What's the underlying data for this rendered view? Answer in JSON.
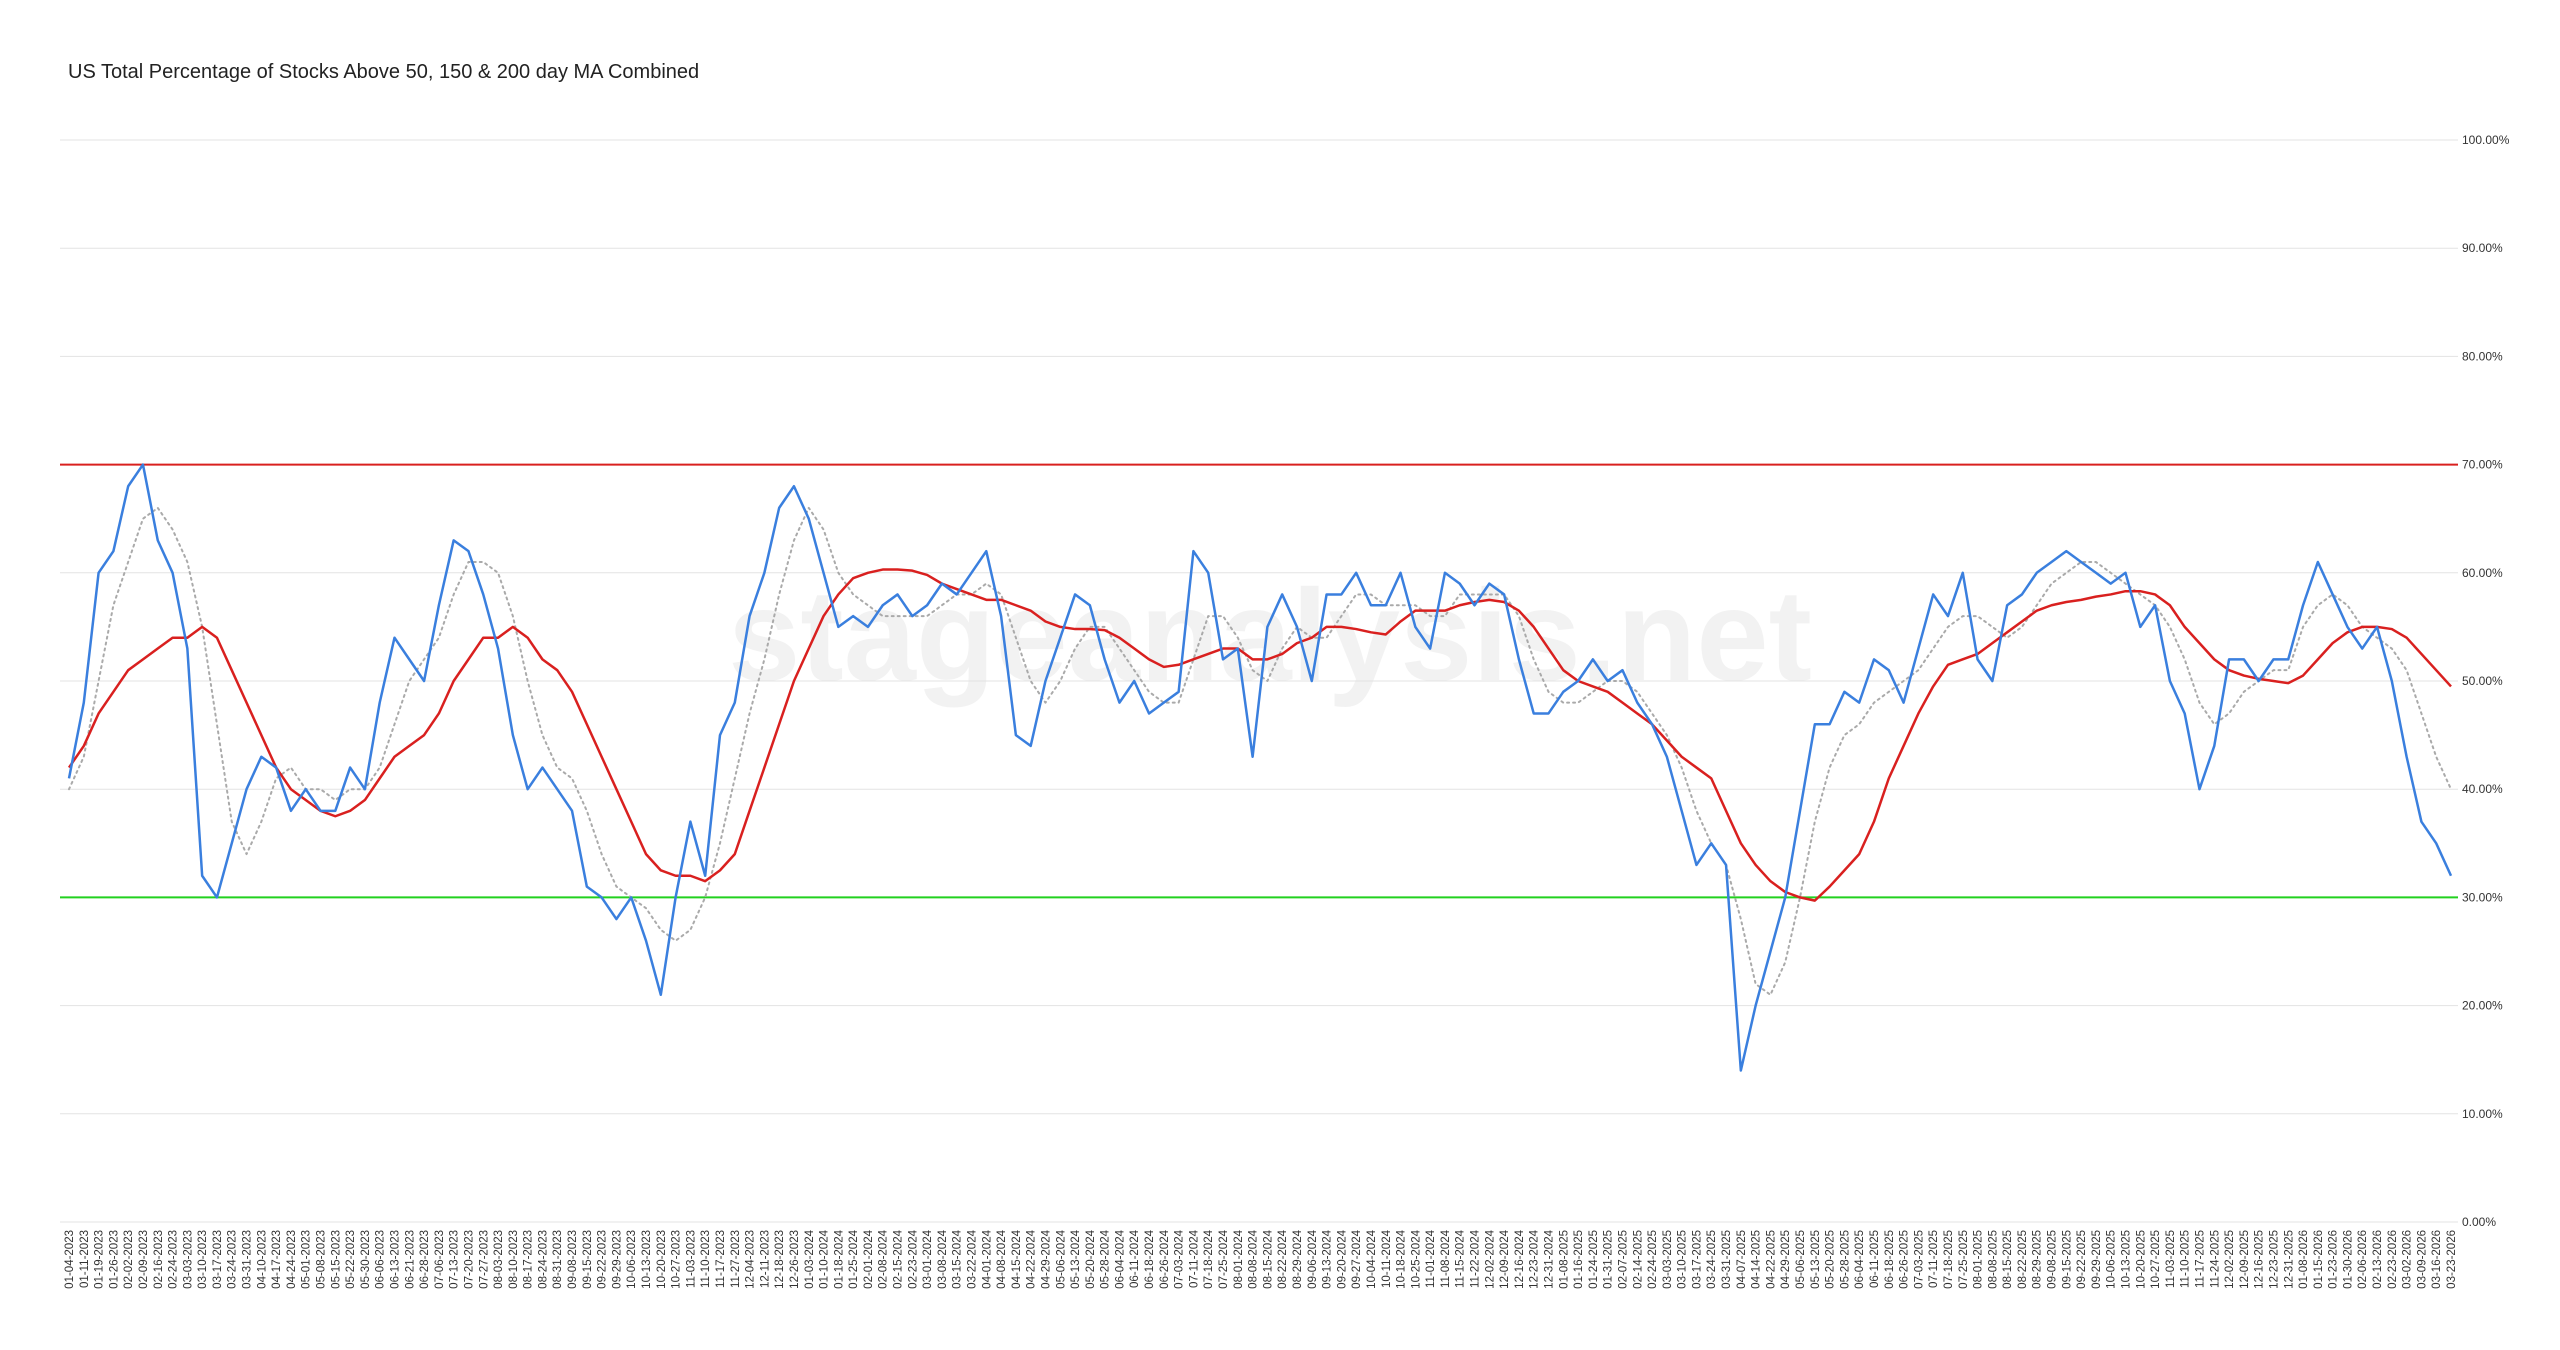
{
  "chart_data": {
    "type": "line",
    "title": "US Total Percentage of Stocks Above 50, 150 & 200 day MA Combined",
    "watermark": "stageanalysis.net",
    "ylim": [
      0,
      100
    ],
    "yticks": [
      {
        "value": 0,
        "label": "0.00%"
      },
      {
        "value": 10,
        "label": "10.00%"
      },
      {
        "value": 20,
        "label": "20.00%"
      },
      {
        "value": 30,
        "label": "30.00%"
      },
      {
        "value": 40,
        "label": "40.00%"
      },
      {
        "value": 50,
        "label": "50.00%"
      },
      {
        "value": 60,
        "label": "60.00%"
      },
      {
        "value": 70,
        "label": "70.00%"
      },
      {
        "value": 80,
        "label": "80.00%"
      },
      {
        "value": 90,
        "label": "90.00%"
      },
      {
        "value": 100,
        "label": "100.00%"
      }
    ],
    "grid": true,
    "reference_lines": [
      {
        "value": 70,
        "color": "#d9201f"
      },
      {
        "value": 30,
        "color": "#22d11f"
      }
    ],
    "categories": [
      "01-04-2023",
      "01-11-2023",
      "01-19-2023",
      "01-26-2023",
      "02-02-2023",
      "02-09-2023",
      "02-16-2023",
      "02-24-2023",
      "03-03-2023",
      "03-10-2023",
      "03-17-2023",
      "03-24-2023",
      "03-31-2023",
      "04-10-2023",
      "04-17-2023",
      "04-24-2023",
      "05-01-2023",
      "05-08-2023",
      "05-15-2023",
      "05-22-2023",
      "05-30-2023",
      "06-06-2023",
      "06-13-2023",
      "06-21-2023",
      "06-28-2023",
      "07-06-2023",
      "07-13-2023",
      "07-20-2023",
      "07-27-2023",
      "08-03-2023",
      "08-10-2023",
      "08-17-2023",
      "08-24-2023",
      "08-31-2023",
      "09-08-2023",
      "09-15-2023",
      "09-22-2023",
      "09-29-2023",
      "10-06-2023",
      "10-13-2023",
      "10-20-2023",
      "10-27-2023",
      "11-03-2023",
      "11-10-2023",
      "11-17-2023",
      "11-27-2023",
      "12-04-2023",
      "12-11-2023",
      "12-18-2023",
      "12-26-2023",
      "01-03-2024",
      "01-10-2024",
      "01-18-2024",
      "01-25-2024",
      "02-01-2024",
      "02-08-2024",
      "02-15-2024",
      "02-23-2024",
      "03-01-2024",
      "03-08-2024",
      "03-15-2024",
      "03-22-2024",
      "04-01-2024",
      "04-08-2024",
      "04-15-2024",
      "04-22-2024",
      "04-29-2024",
      "05-06-2024",
      "05-13-2024",
      "05-20-2024",
      "05-28-2024",
      "06-04-2024",
      "06-11-2024",
      "06-18-2024",
      "06-26-2024",
      "07-03-2024",
      "07-11-2024",
      "07-18-2024",
      "07-25-2024",
      "08-01-2024",
      "08-08-2024",
      "08-15-2024",
      "08-22-2024",
      "08-29-2024",
      "09-06-2024",
      "09-13-2024",
      "09-20-2024",
      "09-27-2024",
      "10-04-2024",
      "10-11-2024",
      "10-18-2024",
      "10-25-2024",
      "11-01-2024",
      "11-08-2024",
      "11-15-2024",
      "11-22-2024",
      "12-02-2024",
      "12-09-2024",
      "12-16-2024",
      "12-23-2024",
      "12-31-2024",
      "01-08-2025",
      "01-16-2025",
      "01-24-2025",
      "01-31-2025",
      "02-07-2025",
      "02-14-2025",
      "02-24-2025",
      "03-03-2025",
      "03-10-2025",
      "03-17-2025",
      "03-24-2025",
      "03-31-2025",
      "04-07-2025",
      "04-14-2025",
      "04-22-2025",
      "04-29-2025",
      "05-06-2025",
      "05-13-2025",
      "05-20-2025",
      "05-28-2025",
      "06-04-2025",
      "06-11-2025",
      "06-18-2025",
      "06-26-2025",
      "07-03-2025",
      "07-11-2025",
      "07-18-2025",
      "07-25-2025",
      "08-01-2025",
      "08-08-2025",
      "08-15-2025",
      "08-22-2025",
      "08-29-2025",
      "09-08-2025",
      "09-15-2025",
      "09-22-2025",
      "09-29-2025",
      "10-06-2025",
      "10-13-2025",
      "10-20-2025",
      "10-27-2025",
      "11-03-2025",
      "11-10-2025",
      "11-17-2025",
      "11-24-2025",
      "12-02-2025",
      "12-09-2025",
      "12-16-2025",
      "12-23-2025",
      "12-31-2025",
      "01-08-2026",
      "01-15-2026",
      "01-23-2026",
      "01-30-2026",
      "02-06-2026",
      "02-13-2026",
      "02-23-2026",
      "03-02-2026",
      "03-09-2026",
      "03-16-2026",
      "03-23-2026"
    ],
    "series": [
      {
        "color": "#aaaaaa",
        "dash": "dotted",
        "values": [
          40,
          43,
          50,
          57,
          61,
          65,
          66,
          64,
          61,
          55,
          46,
          37,
          34,
          37,
          41,
          42,
          40,
          40,
          39,
          40,
          40,
          42,
          46,
          50,
          52,
          54,
          58,
          61,
          61,
          60,
          56,
          50,
          45,
          42,
          41,
          38,
          34,
          31,
          30,
          29,
          27,
          26,
          27,
          30,
          35,
          41,
          47,
          52,
          58,
          63,
          66,
          64,
          60,
          58,
          57,
          56,
          56,
          56,
          56,
          57,
          58,
          58,
          59,
          58,
          54,
          50,
          48,
          50,
          53,
          55,
          55,
          53,
          51,
          49,
          48,
          48,
          52,
          56,
          56,
          54,
          51,
          50,
          53,
          55,
          54,
          54,
          56,
          58,
          58,
          57,
          57,
          57,
          56,
          56,
          58,
          58,
          58,
          58,
          56,
          52,
          49,
          48,
          48,
          49,
          50,
          50,
          49,
          47,
          45,
          42,
          38,
          35,
          33,
          28,
          22,
          21,
          24,
          30,
          37,
          42,
          45,
          46,
          48,
          49,
          50,
          51,
          53,
          55,
          56,
          56,
          55,
          54,
          55,
          57,
          59,
          60,
          61,
          61,
          60,
          59,
          58,
          57,
          55,
          52,
          48,
          46,
          47,
          49,
          50,
          51,
          51,
          55,
          57,
          58,
          57,
          55,
          54,
          53,
          51,
          47,
          43,
          40
        ]
      },
      {
        "color": "#d9201f",
        "dash": "solid",
        "values": [
          42,
          44,
          47,
          49,
          51,
          52,
          53,
          54,
          54,
          55,
          54,
          51,
          48,
          45,
          42,
          40,
          39,
          38,
          37.5,
          38,
          39,
          41,
          43,
          44,
          45,
          47,
          50,
          52,
          54,
          54,
          55,
          54,
          52,
          51,
          49,
          46,
          43,
          40,
          37,
          34,
          32.5,
          32,
          32,
          31.5,
          32.5,
          34,
          38,
          42,
          46,
          50,
          53,
          56,
          58,
          59.5,
          60,
          60.3,
          60.3,
          60.2,
          59.8,
          59,
          58.5,
          58,
          57.5,
          57.5,
          57,
          56.5,
          55.5,
          55,
          54.8,
          54.8,
          54.7,
          54,
          53,
          52,
          51.3,
          51.5,
          52,
          52.5,
          53,
          53,
          52,
          52,
          52.5,
          53.5,
          54,
          55,
          55,
          54.8,
          54.5,
          54.3,
          55.5,
          56.5,
          56.5,
          56.5,
          57,
          57.3,
          57.5,
          57.3,
          56.5,
          55,
          53,
          51,
          50,
          49.5,
          49,
          48,
          47,
          46,
          44.5,
          43,
          42,
          41,
          38,
          35,
          33,
          31.5,
          30.5,
          30,
          29.7,
          31,
          32.5,
          34,
          37,
          41,
          44,
          47,
          49.5,
          51.5,
          52,
          52.5,
          53.5,
          54.5,
          55.5,
          56.5,
          57,
          57.3,
          57.5,
          57.8,
          58,
          58.3,
          58.3,
          58,
          57,
          55,
          53.5,
          52,
          51,
          50.5,
          50.2,
          50,
          49.8,
          50.5,
          52,
          53.5,
          54.5,
          55,
          55,
          54.8,
          54,
          52.5,
          51,
          49.5
        ]
      },
      {
        "color": "#3a7fde",
        "dash": "solid",
        "values": [
          41,
          48,
          60,
          62,
          68,
          70,
          63,
          60,
          53,
          32,
          30,
          35,
          40,
          43,
          42,
          38,
          40,
          38,
          38,
          42,
          40,
          48,
          54,
          52,
          50,
          57,
          63,
          62,
          58,
          53,
          45,
          40,
          42,
          40,
          38,
          31,
          30,
          28,
          30,
          26,
          21,
          30,
          37,
          32,
          45,
          48,
          56,
          60,
          66,
          68,
          65,
          60,
          55,
          56,
          55,
          57,
          58,
          56,
          57,
          59,
          58,
          60,
          62,
          56,
          45,
          44,
          50,
          54,
          58,
          57,
          52,
          48,
          50,
          47,
          48,
          49,
          62,
          60,
          52,
          53,
          43,
          55,
          58,
          55,
          50,
          58,
          58,
          60,
          57,
          57,
          60,
          55,
          53,
          60,
          59,
          57,
          59,
          58,
          52,
          47,
          47,
          49,
          50,
          52,
          50,
          51,
          48,
          46,
          43,
          38,
          33,
          35,
          33,
          14,
          20,
          25,
          30,
          38,
          46,
          46,
          49,
          48,
          52,
          51,
          48,
          53,
          58,
          56,
          60,
          52,
          50,
          57,
          58,
          60,
          61,
          62,
          61,
          60,
          59,
          60,
          55,
          57,
          50,
          47,
          40,
          44,
          52,
          52,
          50,
          52,
          52,
          57,
          61,
          58,
          55,
          53,
          55,
          50,
          43,
          37,
          35,
          32
        ]
      }
    ]
  }
}
